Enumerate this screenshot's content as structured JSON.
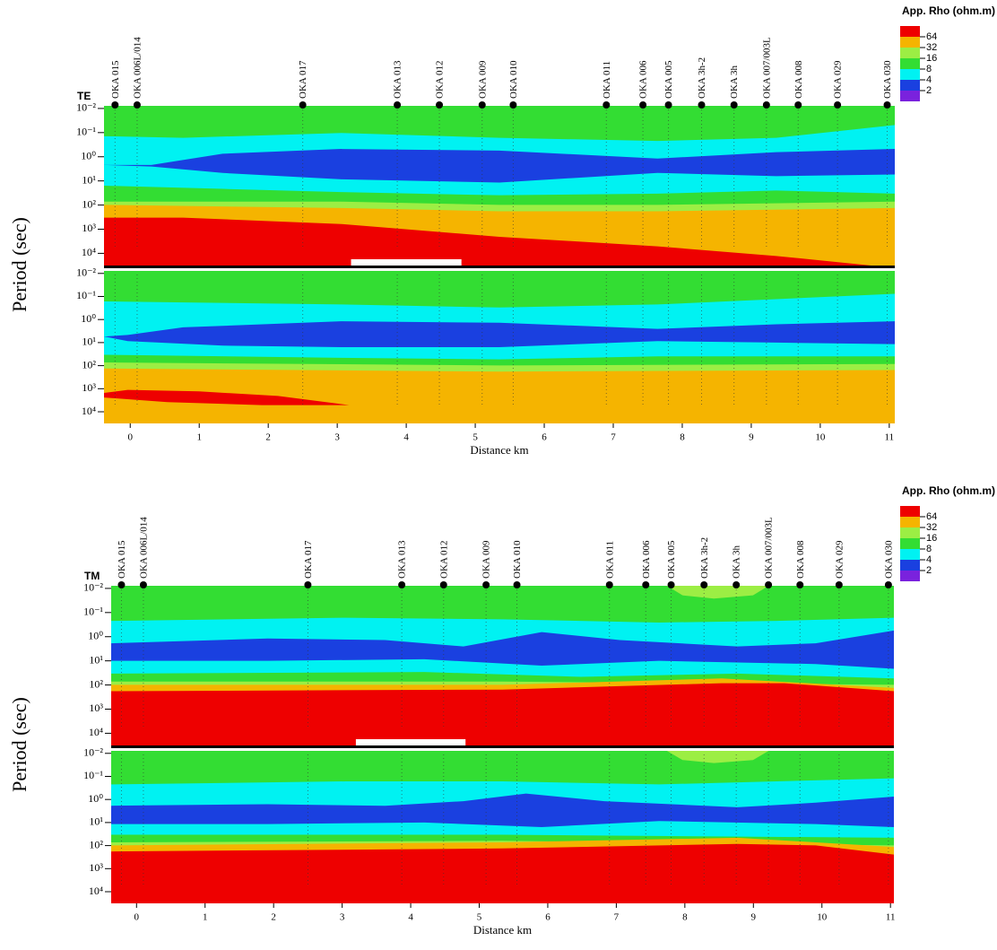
{
  "chart_data": [
    {
      "type": "pseudosection",
      "mode": "TE",
      "stations": {
        "names": [
          "OKA 015",
          "OKA 006L/014",
          "OKA 017",
          "OKA 013",
          "OKA 012",
          "OKA 009",
          "OKA 010",
          "OKA 011",
          "OKA 006",
          "OKA 005",
          "OKA 3h-2",
          "OKA 3h",
          "OKA 007/003L",
          "OKA 008",
          "OKA 029",
          "OKA 030"
        ],
        "x": [
          -0.22,
          0.1,
          2.5,
          3.87,
          4.48,
          5.1,
          5.55,
          6.9,
          7.43,
          7.8,
          8.28,
          8.75,
          9.22,
          9.68,
          10.25,
          10.97
        ]
      },
      "xlabel": "Distance km",
      "ylabel": "Period (sec)",
      "xlim": [
        -0.38,
        11.08
      ],
      "xticks": [
        0,
        1,
        2,
        3,
        4,
        5,
        6,
        7,
        8,
        9,
        10,
        11
      ],
      "log_y": true,
      "ylim": [
        0.0078,
        32000
      ],
      "yticks": [
        {
          "value": 0.01,
          "label": "10⁻²"
        },
        {
          "value": 0.1,
          "label": "10⁻¹"
        },
        {
          "value": 1,
          "label": "10⁰"
        },
        {
          "value": 10,
          "label": "10¹"
        },
        {
          "value": 100,
          "label": "10²"
        },
        {
          "value": 1000,
          "label": "10³"
        },
        {
          "value": 10000,
          "label": "10⁴"
        }
      ],
      "colorbar": {
        "title": "App. Rho (ohm.m)",
        "ticks": [
          64,
          32,
          16,
          8,
          4,
          2
        ],
        "colors": [
          "#ee0000",
          "#f5b400",
          "#9cee44",
          "#33dd33",
          "#00f2f2",
          "#1a40e0",
          "#7a22dd"
        ]
      }
    },
    {
      "type": "pseudosection",
      "mode": "TM",
      "stations": {
        "names": [
          "OKA 015",
          "OKA 006L/014",
          "OKA 017",
          "OKA 013",
          "OKA 012",
          "OKA 009",
          "OKA 010",
          "OKA 011",
          "OKA 006",
          "OKA 005",
          "OKA 3h-2",
          "OKA 3h",
          "OKA 007/003L",
          "OKA 008",
          "OKA 029",
          "OKA 030"
        ],
        "x": [
          -0.22,
          0.1,
          2.5,
          3.87,
          4.48,
          5.1,
          5.55,
          6.9,
          7.43,
          7.8,
          8.28,
          8.75,
          9.22,
          9.68,
          10.25,
          10.97
        ]
      },
      "xlabel": "Distance km",
      "ylabel": "Period (sec)",
      "xlim": [
        -0.37,
        11.05
      ],
      "xticks": [
        0,
        1,
        2,
        3,
        4,
        5,
        6,
        7,
        8,
        9,
        10,
        11
      ],
      "log_y": true,
      "ylim": [
        0.0078,
        32000
      ],
      "yticks": [
        {
          "value": 0.01,
          "label": "10⁻²"
        },
        {
          "value": 0.1,
          "label": "10⁻¹"
        },
        {
          "value": 1,
          "label": "10⁰"
        },
        {
          "value": 10,
          "label": "10¹"
        },
        {
          "value": 100,
          "label": "10²"
        },
        {
          "value": 1000,
          "label": "10³"
        },
        {
          "value": 10000,
          "label": "10⁴"
        }
      ],
      "colorbar": {
        "title": "App. Rho (ohm.m)",
        "ticks": [
          64,
          32,
          16,
          8,
          4,
          2
        ],
        "colors": [
          "#ee0000",
          "#f5b400",
          "#9cee44",
          "#33dd33",
          "#00f2f2",
          "#1a40e0",
          "#7a22dd"
        ]
      }
    }
  ]
}
